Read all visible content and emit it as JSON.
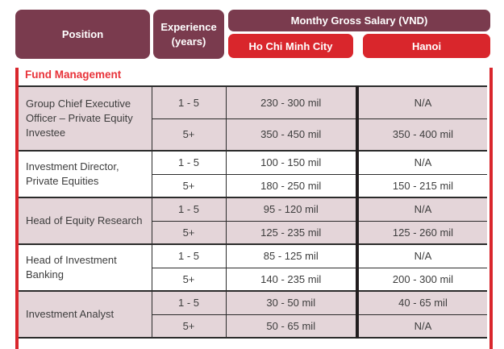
{
  "header": {
    "position_label": "Position",
    "experience_label": "Experience (years)",
    "salary_group_label": "Monthy Gross Salary (VND)",
    "city_hcmc": "Ho Chi Minh City",
    "city_hanoi": "Hanoi"
  },
  "section_title": "Fund Management",
  "table": {
    "columns": [
      "Position",
      "Experience (years)",
      "Ho Chi Minh City",
      "Hanoi"
    ],
    "groups": [
      {
        "position": "Group Chief Executive Officer – Private Equity Investee",
        "shaded": true,
        "rows": [
          {
            "experience": "1 - 5",
            "ho_chi_minh_city": "230 - 300 mil",
            "hanoi": "N/A"
          },
          {
            "experience": "5+",
            "ho_chi_minh_city": "350 - 450 mil",
            "hanoi": "350 - 400 mil"
          }
        ]
      },
      {
        "position": "Investment Director, Private Equities",
        "shaded": false,
        "rows": [
          {
            "experience": "1 - 5",
            "ho_chi_minh_city": "100 - 150 mil",
            "hanoi": "N/A"
          },
          {
            "experience": "5+",
            "ho_chi_minh_city": "180 - 250 mil",
            "hanoi": "150 - 215 mil"
          }
        ]
      },
      {
        "position": "Head of Equity Research",
        "shaded": true,
        "rows": [
          {
            "experience": "1 - 5",
            "ho_chi_minh_city": "95 - 120 mil",
            "hanoi": "N/A"
          },
          {
            "experience": "5+",
            "ho_chi_minh_city": "125 - 235 mil",
            "hanoi": "125 - 260 mil"
          }
        ]
      },
      {
        "position": "Head of Investment Banking",
        "shaded": false,
        "rows": [
          {
            "experience": "1 - 5",
            "ho_chi_minh_city": "85 - 125 mil",
            "hanoi": "N/A"
          },
          {
            "experience": "5+",
            "ho_chi_minh_city": "140 - 235 mil",
            "hanoi": "200 - 300 mil"
          }
        ]
      },
      {
        "position": "Investment Analyst",
        "shaded": true,
        "rows": [
          {
            "experience": "1 - 5",
            "ho_chi_minh_city": "30 - 50 mil",
            "hanoi": "40 - 65 mil"
          },
          {
            "experience": "5+",
            "ho_chi_minh_city": "50 - 65 mil",
            "hanoi": "N/A"
          }
        ]
      }
    ]
  },
  "colors": {
    "maroon_header": "#7a3b4e",
    "red_accent": "#d9262c",
    "section_title_red": "#e8333a",
    "row_shade_pink": "#e4d5d9",
    "body_text": "#3d3d3d",
    "line_dark": "#2b2b2b",
    "divider_black": "#211d1e"
  }
}
